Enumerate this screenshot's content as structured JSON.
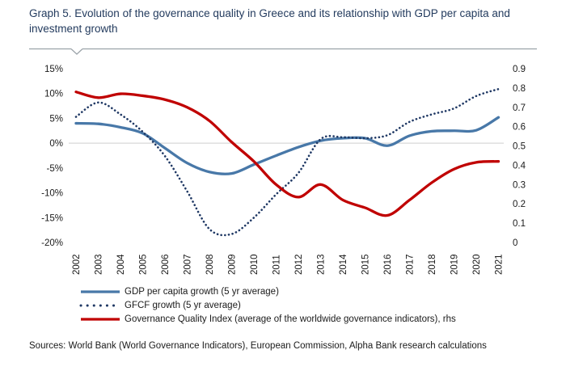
{
  "title": "Graph 5. Evolution of the governance quality in Greece and its relationship with GDP per capita and investment growth",
  "sources": "Sources: World Bank (World Governance Indicators), European Commission, Alpha Bank research calculations",
  "colors": {
    "title_text": "#233b5e",
    "axis_text": "#1a1a1a",
    "gridline": "#d9d9d9",
    "divider": "#9aa2a8",
    "gdp_line": "#4878a8",
    "gfcf_line": "#1f3864",
    "governance_line": "#c00000"
  },
  "chart_data": {
    "type": "line",
    "title": "Evolution of the governance quality in Greece and its relationship with GDP per capita and investment growth",
    "x": [
      2002,
      2003,
      2004,
      2005,
      2006,
      2007,
      2008,
      2009,
      2010,
      2011,
      2012,
      2013,
      2014,
      2015,
      2016,
      2017,
      2018,
      2019,
      2020,
      2021
    ],
    "series": [
      {
        "name": "GDP per capita growth (5 yr average)",
        "axis": "left",
        "style": "solid",
        "color": "#4878a8",
        "values": [
          4.0,
          3.9,
          3.2,
          2.0,
          -1.0,
          -4.0,
          -5.8,
          -6.1,
          -4.3,
          -2.5,
          -0.8,
          0.5,
          1.0,
          1.0,
          -0.5,
          1.5,
          2.4,
          2.5,
          2.6,
          5.2
        ]
      },
      {
        "name": "GFCF growth (5 yr average)",
        "axis": "left",
        "style": "dotted",
        "color": "#1f3864",
        "values": [
          5.3,
          8.2,
          5.8,
          2.3,
          -2.6,
          -9.7,
          -17.3,
          -18.3,
          -15.0,
          -10.3,
          -6.0,
          0.8,
          1.2,
          1.0,
          1.6,
          4.3,
          5.8,
          7.0,
          9.5,
          10.9
        ]
      },
      {
        "name": "Governance Quality Index (average of the worldwide governance indicators), rhs",
        "axis": "right",
        "style": "solid",
        "color": "#c00000",
        "values": [
          0.78,
          0.75,
          0.77,
          0.76,
          0.74,
          0.7,
          0.63,
          0.52,
          0.42,
          0.3,
          0.235,
          0.3,
          0.22,
          0.18,
          0.14,
          0.22,
          0.31,
          0.38,
          0.415,
          0.42
        ]
      }
    ],
    "left_axis": {
      "min": -20,
      "max": 15,
      "ticks": [
        "15%",
        "10%",
        "5%",
        "0%",
        "-5%",
        "-10%",
        "-15%",
        "-20%"
      ],
      "format": "percent"
    },
    "right_axis": {
      "min": 0,
      "max": 0.9,
      "ticks": [
        "0.9",
        "0.8",
        "0.7",
        "0.6",
        "0.5",
        "0.4",
        "0.3",
        "0.2",
        "0.1",
        "0"
      ]
    },
    "gridlines": [
      0
    ],
    "grid": "zero-line-only",
    "legend_position": "bottom"
  }
}
